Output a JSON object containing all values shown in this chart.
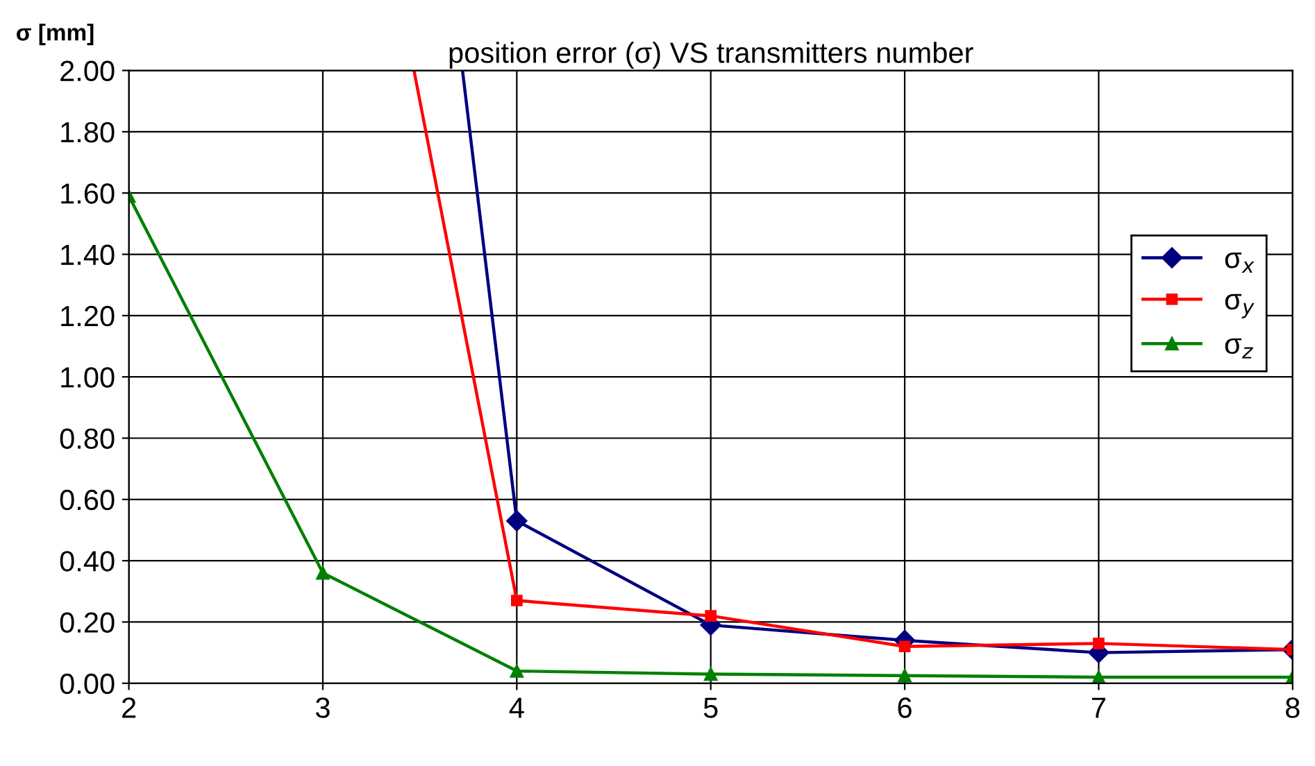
{
  "chart_data": {
    "type": "line",
    "title": "position error (σ) VS transmitters number",
    "ylabel": "σ [mm]",
    "x": [
      2,
      3,
      4,
      5,
      6,
      7,
      8
    ],
    "series": [
      {
        "name": "σ$_{x}$",
        "color": "#000080",
        "marker": "diamond",
        "x": [
          3.72,
          4,
          5,
          6,
          7,
          8
        ],
        "values": [
          2.0,
          0.53,
          0.19,
          0.14,
          0.1,
          0.11
        ]
      },
      {
        "name": "σ$_{y}$",
        "color": "#ff0000",
        "marker": "square",
        "x": [
          3.47,
          4,
          5,
          6,
          7,
          8
        ],
        "values": [
          2.0,
          0.27,
          0.22,
          0.12,
          0.13,
          0.11
        ]
      },
      {
        "name": "σ$_{z}$",
        "color": "#008000",
        "marker": "triangle",
        "values": [
          1.59,
          0.36,
          0.04,
          0.03,
          0.025,
          0.02,
          0.02
        ]
      }
    ],
    "xlim": [
      2,
      8
    ],
    "xticks": [
      2,
      3,
      4,
      5,
      6,
      7,
      8
    ],
    "ylim": [
      0,
      2
    ],
    "yticks": [
      {
        "value": 0,
        "label": "0.00"
      },
      {
        "value": 0.2,
        "label": "0.20"
      },
      {
        "value": 0.4,
        "label": "0.40"
      },
      {
        "value": 0.6,
        "label": "0.60"
      },
      {
        "value": 0.8,
        "label": "0.80"
      },
      {
        "value": 1.0,
        "label": "1.00"
      },
      {
        "value": 1.2,
        "label": "1.20"
      },
      {
        "value": 1.4,
        "label": "1.40"
      },
      {
        "value": 1.6,
        "label": "1.60"
      },
      {
        "value": 1.8,
        "label": "1.80"
      },
      {
        "value": 2.0,
        "label": "2.00"
      }
    ],
    "grid": true,
    "legend": "right",
    "line_style": "solid"
  }
}
